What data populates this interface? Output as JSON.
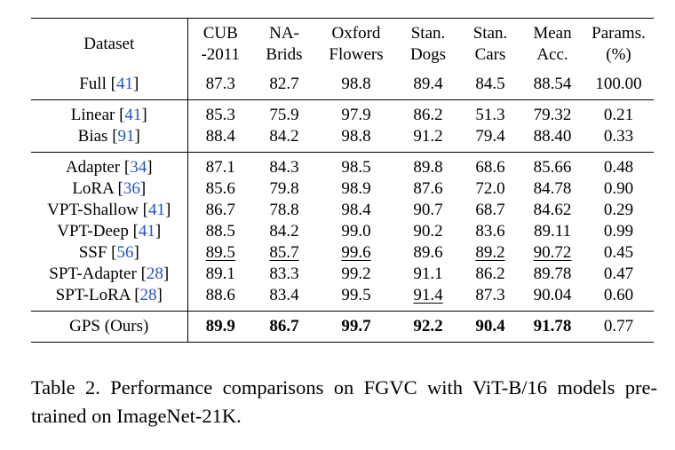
{
  "table": {
    "header": {
      "dataset": "Dataset",
      "cub": [
        "CUB",
        "-2011"
      ],
      "nabirds": [
        "NA-",
        "Brids"
      ],
      "oxford": [
        "Oxford",
        "Flowers"
      ],
      "dogs": [
        "Stan.",
        "Dogs"
      ],
      "cars": [
        "Stan.",
        "Cars"
      ],
      "mean": [
        "Mean",
        "Acc."
      ],
      "params": [
        "Params.",
        "(%)"
      ]
    },
    "groups": [
      [
        {
          "name": "Full",
          "cite": "41",
          "values": [
            "87.3",
            "82.7",
            "98.8",
            "89.4",
            "84.5",
            "88.54",
            "100.00"
          ]
        }
      ],
      [
        {
          "name": "Linear",
          "cite": "41",
          "values": [
            "85.3",
            "75.9",
            "97.9",
            "86.2",
            "51.3",
            "79.32",
            "0.21"
          ]
        },
        {
          "name": "Bias",
          "cite": "91",
          "values": [
            "88.4",
            "84.2",
            "98.8",
            "91.2",
            "79.4",
            "88.40",
            "0.33"
          ]
        }
      ],
      [
        {
          "name": "Adapter",
          "cite": "34",
          "values": [
            "87.1",
            "84.3",
            "98.5",
            "89.8",
            "68.6",
            "85.66",
            "0.48"
          ]
        },
        {
          "name": "LoRA",
          "cite": "36",
          "values": [
            "85.6",
            "79.8",
            "98.9",
            "87.6",
            "72.0",
            "84.78",
            "0.90"
          ]
        },
        {
          "name": "VPT-Shallow",
          "cite": "41",
          "values": [
            "86.7",
            "78.8",
            "98.4",
            "90.7",
            "68.7",
            "84.62",
            "0.29"
          ]
        },
        {
          "name": "VPT-Deep",
          "cite": "41",
          "values": [
            "88.5",
            "84.2",
            "99.0",
            "90.2",
            "83.6",
            "89.11",
            "0.99"
          ]
        },
        {
          "name": "SSF",
          "cite": "56",
          "values": [
            "89.5",
            "85.7",
            "99.6",
            "89.6",
            "89.2",
            "90.72",
            "0.45"
          ]
        },
        {
          "name": "SPT-Adapter",
          "cite": "28",
          "values": [
            "89.1",
            "83.3",
            "99.2",
            "91.1",
            "86.2",
            "89.78",
            "0.47"
          ]
        },
        {
          "name": "SPT-LoRA",
          "cite": "28",
          "values": [
            "88.6",
            "83.4",
            "99.5",
            "91.4",
            "87.3",
            "90.04",
            "0.60"
          ]
        }
      ],
      [
        {
          "name": "GPS (Ours)",
          "cite": "",
          "values": [
            "89.9",
            "86.7",
            "99.7",
            "92.2",
            "90.4",
            "91.78",
            "0.77"
          ]
        }
      ]
    ]
  },
  "caption": "Table 2. Performance comparisons on FGVC with ViT-B/16 models pre-trained on ImageNet-21K."
}
